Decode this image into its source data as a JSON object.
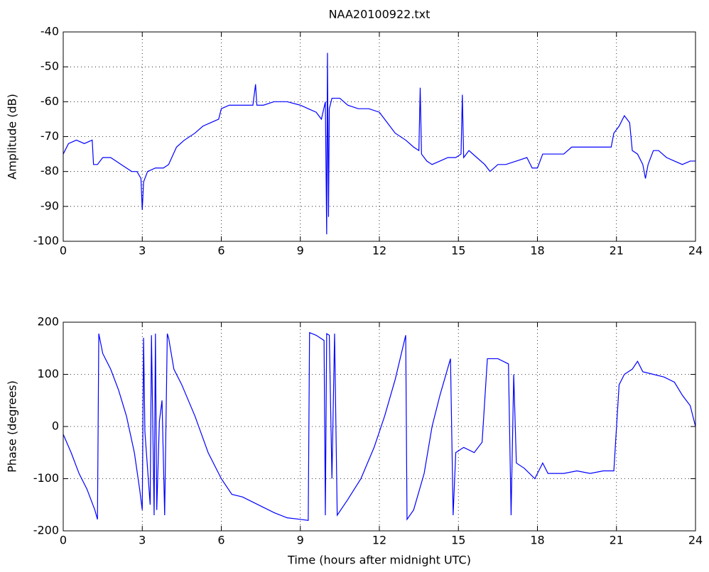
{
  "chart_data": [
    {
      "type": "line",
      "title": "NAA20100922.txt",
      "ylabel": "Amplitude (dB)",
      "color": "#0000ff",
      "grid": true,
      "xlim": [
        0,
        24
      ],
      "xticks": [
        0,
        3,
        6,
        9,
        12,
        15,
        18,
        21,
        24
      ],
      "ylim": [
        -100,
        -40
      ],
      "yticks": [
        -100,
        -90,
        -80,
        -70,
        -60,
        -50,
        -40
      ],
      "x": [
        0,
        0.2,
        0.5,
        0.8,
        1.1,
        1.15,
        1.3,
        1.5,
        1.8,
        2.0,
        2.2,
        2.4,
        2.6,
        2.8,
        2.95,
        3.0,
        3.05,
        3.2,
        3.5,
        3.8,
        4.0,
        4.3,
        4.6,
        5.0,
        5.3,
        5.6,
        5.9,
        6.0,
        6.3,
        6.8,
        7.2,
        7.3,
        7.35,
        7.6,
        8.0,
        8.5,
        9.0,
        9.3,
        9.6,
        9.8,
        9.95,
        10.0,
        10.03,
        10.07,
        10.1,
        10.2,
        10.5,
        10.8,
        11.2,
        11.6,
        12.0,
        12.3,
        12.6,
        13.0,
        13.3,
        13.5,
        13.55,
        13.6,
        13.8,
        14.0,
        14.3,
        14.6,
        14.9,
        15.1,
        15.15,
        15.2,
        15.4,
        15.7,
        16.0,
        16.2,
        16.5,
        16.8,
        17.2,
        17.6,
        17.8,
        18.0,
        18.2,
        18.6,
        19.0,
        19.3,
        19.6,
        20.0,
        20.4,
        20.8,
        20.9,
        21.1,
        21.3,
        21.5,
        21.6,
        21.8,
        22.0,
        22.1,
        22.2,
        22.4,
        22.6,
        22.9,
        23.2,
        23.5,
        23.8,
        24.0
      ],
      "values": [
        -75,
        -72,
        -71,
        -72,
        -71,
        -78,
        -78,
        -76,
        -76,
        -77,
        -78,
        -79,
        -80,
        -80,
        -82,
        -91,
        -83,
        -80,
        -79,
        -79,
        -78,
        -73,
        -71,
        -69,
        -67,
        -66,
        -65,
        -62,
        -61,
        -61,
        -61,
        -55,
        -61,
        -61,
        -60,
        -60,
        -61,
        -62,
        -63,
        -65,
        -60,
        -98,
        -46,
        -93,
        -62,
        -59,
        -59,
        -61,
        -62,
        -62,
        -63,
        -66,
        -69,
        -71,
        -73,
        -74,
        -56,
        -75,
        -77,
        -78,
        -77,
        -76,
        -76,
        -75,
        -58,
        -76,
        -74,
        -76,
        -78,
        -80,
        -78,
        -78,
        -77,
        -76,
        -79,
        -79,
        -75,
        -75,
        -75,
        -73,
        -73,
        -73,
        -73,
        -73,
        -69,
        -67,
        -64,
        -66,
        -74,
        -75,
        -78,
        -82,
        -78,
        -74,
        -74,
        -76,
        -77,
        -78,
        -77,
        -77
      ]
    },
    {
      "type": "line",
      "ylabel": "Phase (degrees)",
      "xlabel": "Time (hours after midnight UTC)",
      "color": "#0000ff",
      "grid": true,
      "xlim": [
        0,
        24
      ],
      "xticks": [
        0,
        3,
        6,
        9,
        12,
        15,
        18,
        21,
        24
      ],
      "ylim": [
        -200,
        200
      ],
      "yticks": [
        -200,
        -100,
        0,
        100,
        200
      ],
      "x": [
        0,
        0.3,
        0.6,
        0.9,
        1.2,
        1.3,
        1.35,
        1.5,
        1.8,
        2.1,
        2.4,
        2.7,
        2.9,
        3.0,
        3.05,
        3.1,
        3.2,
        3.3,
        3.35,
        3.45,
        3.5,
        3.55,
        3.65,
        3.75,
        3.85,
        3.95,
        4.0,
        4.2,
        4.5,
        5.0,
        5.5,
        6.0,
        6.4,
        6.8,
        7.2,
        7.6,
        8.0,
        8.5,
        9.0,
        9.3,
        9.35,
        9.6,
        9.9,
        9.95,
        10.0,
        10.1,
        10.2,
        10.3,
        10.4,
        10.8,
        11.3,
        11.8,
        12.2,
        12.6,
        13.0,
        13.05,
        13.3,
        13.7,
        14.0,
        14.3,
        14.7,
        14.8,
        14.9,
        15.2,
        15.6,
        15.9,
        16.1,
        16.5,
        16.9,
        17.0,
        17.1,
        17.2,
        17.5,
        17.9,
        18.2,
        18.4,
        19.0,
        19.5,
        20.0,
        20.5,
        20.9,
        21.1,
        21.3,
        21.6,
        21.8,
        22.0,
        22.4,
        22.8,
        23.2,
        23.5,
        23.8,
        24.0
      ],
      "values": [
        -15,
        -50,
        -90,
        -120,
        -160,
        -178,
        178,
        140,
        110,
        70,
        20,
        -50,
        -120,
        -160,
        170,
        -10,
        -80,
        -150,
        175,
        -170,
        178,
        -160,
        10,
        50,
        -170,
        178,
        170,
        110,
        80,
        20,
        -50,
        -100,
        -130,
        -135,
        -145,
        -155,
        -165,
        -175,
        -178,
        -180,
        180,
        175,
        165,
        -170,
        178,
        175,
        -100,
        178,
        -170,
        -140,
        -100,
        -40,
        20,
        90,
        175,
        -178,
        -160,
        -90,
        0,
        60,
        130,
        -170,
        -50,
        -40,
        -50,
        -30,
        130,
        130,
        120,
        -170,
        100,
        -70,
        -80,
        -100,
        -70,
        -90,
        -90,
        -85,
        -90,
        -85,
        -85,
        80,
        100,
        110,
        125,
        105,
        100,
        95,
        85,
        60,
        40,
        0
      ]
    }
  ]
}
